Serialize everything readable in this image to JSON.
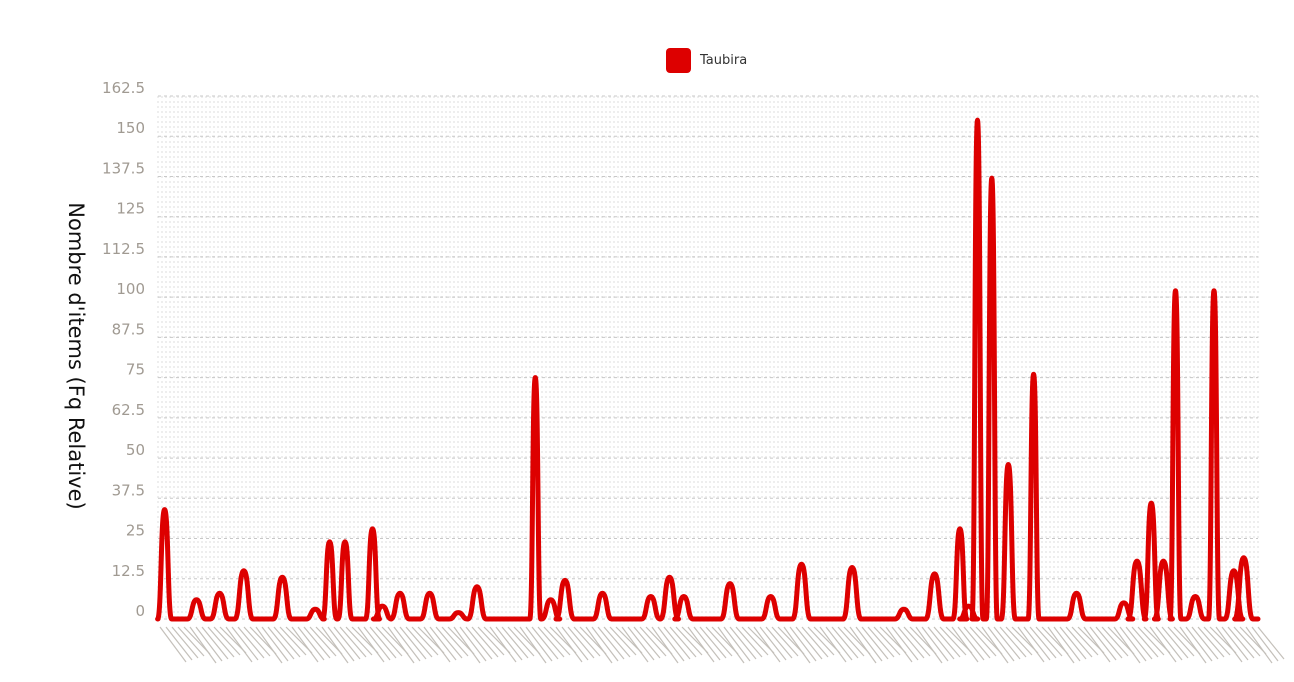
{
  "chart_data": {
    "type": "line",
    "title": "",
    "xlabel": "",
    "ylabel": "Nombre d'items (Fq Relative)",
    "ylim": [
      0,
      162.5
    ],
    "yticks": [
      "0",
      "12.5",
      "25",
      "37.5",
      "50",
      "62.5",
      "75",
      "87.5",
      "100",
      "112.5",
      "125",
      "137.5",
      "150",
      "162.5"
    ],
    "grid": true,
    "legend_position": "top",
    "series": [
      {
        "name": "Taubira",
        "color": "#dd0000",
        "peaks": [
          {
            "x": 0.006,
            "v": 34
          },
          {
            "x": 0.035,
            "v": 6
          },
          {
            "x": 0.056,
            "v": 8
          },
          {
            "x": 0.078,
            "v": 15
          },
          {
            "x": 0.113,
            "v": 13
          },
          {
            "x": 0.143,
            "v": 3
          },
          {
            "x": 0.156,
            "v": 24
          },
          {
            "x": 0.17,
            "v": 24
          },
          {
            "x": 0.195,
            "v": 28
          },
          {
            "x": 0.204,
            "v": 4
          },
          {
            "x": 0.22,
            "v": 8
          },
          {
            "x": 0.247,
            "v": 8
          },
          {
            "x": 0.273,
            "v": 2
          },
          {
            "x": 0.29,
            "v": 10
          },
          {
            "x": 0.343,
            "v": 75
          },
          {
            "x": 0.357,
            "v": 6
          },
          {
            "x": 0.37,
            "v": 12
          },
          {
            "x": 0.404,
            "v": 8
          },
          {
            "x": 0.448,
            "v": 7
          },
          {
            "x": 0.465,
            "v": 13
          },
          {
            "x": 0.478,
            "v": 7
          },
          {
            "x": 0.52,
            "v": 11
          },
          {
            "x": 0.557,
            "v": 7
          },
          {
            "x": 0.585,
            "v": 17
          },
          {
            "x": 0.631,
            "v": 16
          },
          {
            "x": 0.678,
            "v": 3
          },
          {
            "x": 0.706,
            "v": 14
          },
          {
            "x": 0.729,
            "v": 28
          },
          {
            "x": 0.737,
            "v": 4
          },
          {
            "x": 0.745,
            "v": 155
          },
          {
            "x": 0.758,
            "v": 137
          },
          {
            "x": 0.773,
            "v": 48
          },
          {
            "x": 0.796,
            "v": 76
          },
          {
            "x": 0.835,
            "v": 8
          },
          {
            "x": 0.878,
            "v": 5
          },
          {
            "x": 0.89,
            "v": 18
          },
          {
            "x": 0.903,
            "v": 36
          },
          {
            "x": 0.914,
            "v": 18
          },
          {
            "x": 0.925,
            "v": 102
          },
          {
            "x": 0.943,
            "v": 7
          },
          {
            "x": 0.96,
            "v": 102
          },
          {
            "x": 0.978,
            "v": 15
          },
          {
            "x": 0.987,
            "v": 19
          }
        ]
      }
    ]
  }
}
